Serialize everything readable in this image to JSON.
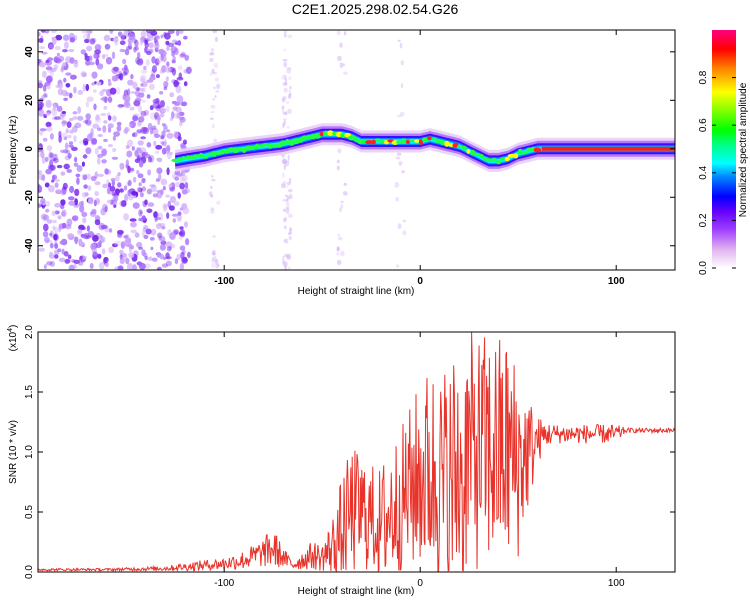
{
  "title": "C2E1.2025.298.02.54.G26",
  "chart_data": [
    {
      "type": "heatmap",
      "xlabel": "Height of straight line (km)",
      "ylabel": "Frequency (Hz)",
      "xlim": [
        -195,
        130
      ],
      "ylim": [
        -50,
        49
      ],
      "xticks": [
        -100,
        0,
        100
      ],
      "xtick_labels": [
        "-100",
        "0",
        "100"
      ],
      "yticks": [
        -40,
        -20,
        0,
        20,
        40
      ],
      "ytick_labels": [
        "-40",
        "-20",
        "0",
        "20",
        "40"
      ],
      "ridge": {
        "name": "frequency ridge",
        "x": [
          -125,
          -118,
          -110,
          -100,
          -90,
          -80,
          -70,
          -60,
          -55,
          -50,
          -45,
          -40,
          -35,
          -30,
          -25,
          -20,
          -15,
          -10,
          -5,
          0,
          5,
          10,
          15,
          20,
          25,
          30,
          35,
          40,
          45,
          50,
          55,
          60,
          70,
          80,
          90,
          100,
          110,
          120,
          130
        ],
        "y": [
          -5,
          -4,
          -3,
          -1,
          0,
          1,
          2,
          4,
          5,
          6,
          6,
          6,
          5,
          3,
          3,
          3,
          3,
          3,
          3,
          3,
          4,
          3,
          2,
          1,
          -1,
          -3,
          -5,
          -5,
          -4,
          -2,
          -1,
          0,
          0,
          0,
          0,
          0,
          0,
          0,
          0
        ]
      },
      "noise_region": {
        "x_from": -195,
        "x_to": -120
      },
      "colorbar": {
        "label": "Normalized spectral amplitude",
        "ticks": [
          0.0,
          0.2,
          0.4,
          0.6,
          0.8
        ],
        "tick_labels": [
          "0.0",
          "0.2",
          "0.4",
          "0.6",
          "0.8"
        ],
        "colors": [
          "#ffffff",
          "#e0b0f0",
          "#a040ff",
          "#6000ff",
          "#0000ff",
          "#0080ff",
          "#00ffff",
          "#00ff80",
          "#00ff00",
          "#80ff00",
          "#ffff00",
          "#ff8000",
          "#ff0000",
          "#ff0080"
        ]
      }
    },
    {
      "type": "line",
      "xlabel": "Height of straight line (km)",
      "ylabel": "SNR (10 * v/v)",
      "multiplier_label": "(x10",
      "multiplier_exp": "4",
      "multiplier_close": ")",
      "xlim": [
        -195,
        130
      ],
      "ylim": [
        0,
        2.0
      ],
      "xticks": [
        -100,
        0,
        100
      ],
      "xtick_labels": [
        "-100",
        "0",
        "100"
      ],
      "yticks": [
        0.0,
        0.5,
        1.0,
        1.5,
        2.0
      ],
      "ytick_labels": [
        "0.0",
        "0.5",
        "1.0",
        "1.5",
        "2.0"
      ],
      "color": "#e8332b",
      "envelope": {
        "x": [
          -195,
          -160,
          -130,
          -115,
          -100,
          -90,
          -80,
          -75,
          -70,
          -65,
          -60,
          -55,
          -50,
          -45,
          -40,
          -35,
          -30,
          -25,
          -20,
          -15,
          -10,
          -5,
          0,
          5,
          10,
          15,
          20,
          25,
          30,
          35,
          40,
          45,
          50,
          55,
          60,
          65,
          70,
          80,
          90,
          100,
          105,
          110,
          120,
          130
        ],
        "base": [
          0.02,
          0.02,
          0.03,
          0.05,
          0.07,
          0.1,
          0.16,
          0.2,
          0.12,
          0.06,
          0.1,
          0.14,
          0.12,
          0.2,
          0.35,
          0.5,
          0.5,
          0.45,
          0.4,
          0.5,
          0.6,
          0.7,
          0.8,
          0.85,
          0.7,
          0.7,
          0.9,
          1.0,
          1.0,
          1.0,
          1.0,
          1.0,
          0.9,
          1.0,
          1.1,
          1.15,
          1.15,
          1.15,
          1.15,
          1.15,
          1.18,
          1.18,
          1.18,
          1.18
        ],
        "amp": [
          0.01,
          0.01,
          0.02,
          0.04,
          0.05,
          0.08,
          0.12,
          0.18,
          0.08,
          0.05,
          0.08,
          0.12,
          0.12,
          0.25,
          0.45,
          0.55,
          0.5,
          0.45,
          0.5,
          0.6,
          0.6,
          0.7,
          0.8,
          0.9,
          1.0,
          1.1,
          1.1,
          1.0,
          1.0,
          1.0,
          1.0,
          1.0,
          0.8,
          0.5,
          0.2,
          0.1,
          0.08,
          0.08,
          0.08,
          0.08,
          0.02,
          0.02,
          0.02,
          0.02
        ]
      }
    }
  ]
}
